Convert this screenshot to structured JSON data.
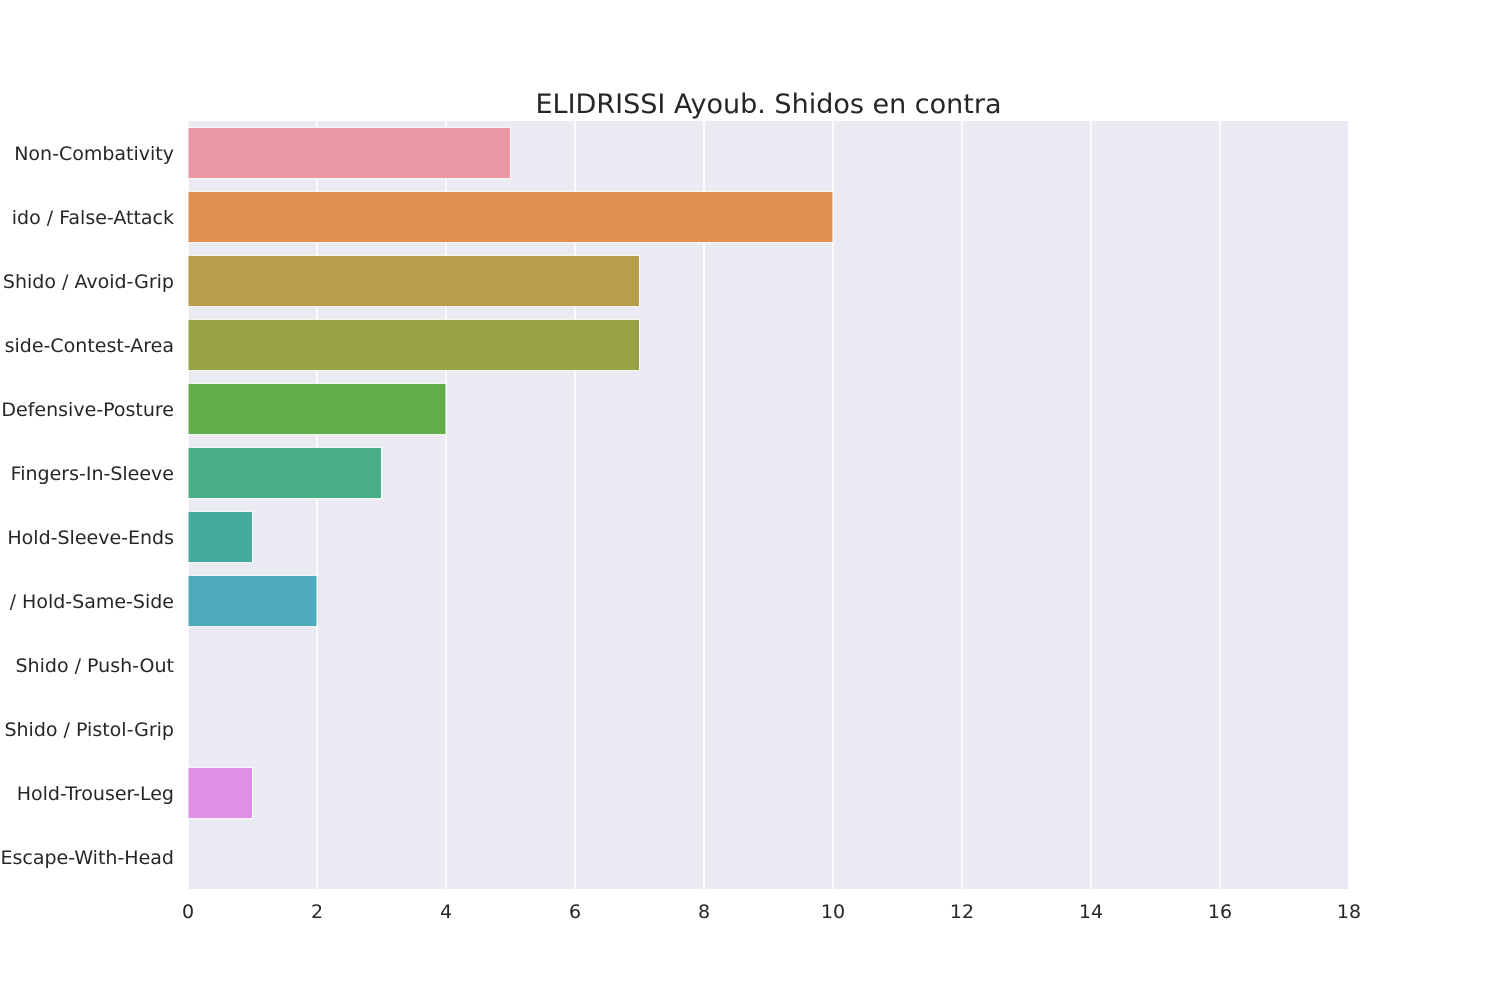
{
  "chart_data": {
    "type": "bar",
    "orientation": "horizontal",
    "title": "ELIDRISSI Ayoub. Shidos en contra",
    "xlabel": "",
    "ylabel": "",
    "categories": [
      "Non-Combativity",
      "ido / False-Attack",
      "Shido / Avoid-Grip",
      "side-Contest-Area",
      "Defensive-Posture",
      "Fingers-In-Sleeve",
      "Hold-Sleeve-Ends",
      "/ Hold-Same-Side",
      "Shido / Push-Out",
      "Shido / Pistol-Grip",
      "Hold-Trouser-Leg",
      "Escape-With-Head"
    ],
    "values": [
      5,
      10,
      7,
      7,
      4,
      3,
      1,
      2,
      0,
      0,
      1,
      0
    ],
    "colors": [
      "#ea96a3",
      "#e19153",
      "#b89d4a",
      "#98a246",
      "#62ae48",
      "#4aae86",
      "#46a99d",
      "#4faabd",
      "#5aa9e6",
      "#aba6f0",
      "#e08fe9",
      "#ea96c9"
    ],
    "xlim": [
      0,
      18
    ],
    "xticks": [
      "0",
      "2",
      "4",
      "6",
      "8",
      "10",
      "12",
      "14",
      "16",
      "18"
    ],
    "grid": true,
    "legend": "none",
    "background": "#eaeaf2",
    "grid_color": "#ffffff"
  }
}
